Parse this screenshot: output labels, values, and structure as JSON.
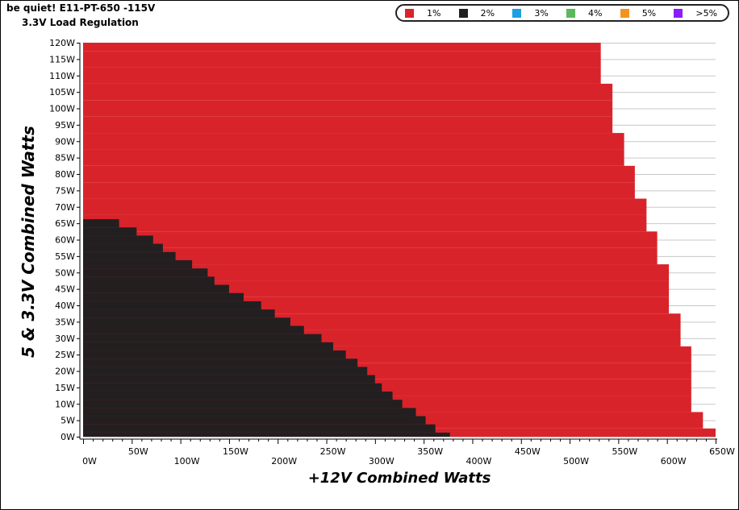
{
  "chart_data": {
    "type": "heatmap",
    "title": "be quiet! E11-PT-650 -115V",
    "subtitle": "3.3V Load Regulation",
    "xlabel": "+12V Combined Watts",
    "ylabel": "5 & 3.3V Combined Watts",
    "x_ticks": [
      "0W",
      "50W",
      "100W",
      "150W",
      "200W",
      "250W",
      "300W",
      "350W",
      "400W",
      "450W",
      "500W",
      "550W",
      "600W",
      "650W"
    ],
    "y_ticks": [
      "0W",
      "5W",
      "10W",
      "15W",
      "20W",
      "25W",
      "30W",
      "35W",
      "40W",
      "45W",
      "50W",
      "55W",
      "60W",
      "65W",
      "70W",
      "75W",
      "80W",
      "85W",
      "90W",
      "95W",
      "100W",
      "105W",
      "110W",
      "115W",
      "120W"
    ],
    "xlim": [
      0,
      650
    ],
    "ylim": [
      0,
      120
    ],
    "grid": true,
    "legend_position": "top-right",
    "legend": [
      {
        "label": "1%",
        "color": "#d9232a"
      },
      {
        "label": "2%",
        "color": "#231f20"
      },
      {
        "label": "3%",
        "color": "#1ba1e2"
      },
      {
        "label": "4%",
        "color": "#5cb85c"
      },
      {
        "label": "5%",
        "color": "#f39221"
      },
      {
        "label": ">5%",
        "color": "#8b1cff"
      }
    ],
    "region_1pct_max_12v_by_5v": [
      {
        "y": 0,
        "x_max": 650
      },
      {
        "y": 5,
        "x_max": 637
      },
      {
        "y": 10,
        "x_max": 625
      },
      {
        "y": 15,
        "x_max": 625
      },
      {
        "y": 20,
        "x_max": 625
      },
      {
        "y": 25,
        "x_max": 625
      },
      {
        "y": 30,
        "x_max": 614
      },
      {
        "y": 35,
        "x_max": 614
      },
      {
        "y": 40,
        "x_max": 602
      },
      {
        "y": 45,
        "x_max": 602
      },
      {
        "y": 50,
        "x_max": 602
      },
      {
        "y": 55,
        "x_max": 590
      },
      {
        "y": 60,
        "x_max": 590
      },
      {
        "y": 65,
        "x_max": 579
      },
      {
        "y": 70,
        "x_max": 579
      },
      {
        "y": 75,
        "x_max": 567
      },
      {
        "y": 80,
        "x_max": 567
      },
      {
        "y": 85,
        "x_max": 556
      },
      {
        "y": 90,
        "x_max": 556
      },
      {
        "y": 95,
        "x_max": 544
      },
      {
        "y": 100,
        "x_max": 544
      },
      {
        "y": 105,
        "x_max": 544
      },
      {
        "y": 110,
        "x_max": 532
      },
      {
        "y": 115,
        "x_max": 532
      },
      {
        "y": 120,
        "x_max": 532
      }
    ],
    "region_2pct_max_12v_by_5v": [
      {
        "y": 0,
        "x_max": 377
      },
      {
        "y": 2.5,
        "x_max": 362
      },
      {
        "y": 5,
        "x_max": 352
      },
      {
        "y": 7.5,
        "x_max": 342
      },
      {
        "y": 10,
        "x_max": 328
      },
      {
        "y": 12.5,
        "x_max": 318
      },
      {
        "y": 15,
        "x_max": 307
      },
      {
        "y": 17.5,
        "x_max": 300
      },
      {
        "y": 20,
        "x_max": 292
      },
      {
        "y": 22.5,
        "x_max": 282
      },
      {
        "y": 25,
        "x_max": 270
      },
      {
        "y": 27.5,
        "x_max": 257
      },
      {
        "y": 30,
        "x_max": 245
      },
      {
        "y": 32.5,
        "x_max": 227
      },
      {
        "y": 35,
        "x_max": 213
      },
      {
        "y": 37.5,
        "x_max": 197
      },
      {
        "y": 40,
        "x_max": 183
      },
      {
        "y": 42.5,
        "x_max": 165
      },
      {
        "y": 45,
        "x_max": 150
      },
      {
        "y": 47.5,
        "x_max": 135
      },
      {
        "y": 50,
        "x_max": 128
      },
      {
        "y": 52.5,
        "x_max": 112
      },
      {
        "y": 55,
        "x_max": 95
      },
      {
        "y": 57.5,
        "x_max": 82
      },
      {
        "y": 60,
        "x_max": 72
      },
      {
        "y": 62.5,
        "x_max": 55
      },
      {
        "y": 65,
        "x_max": 37
      }
    ]
  }
}
